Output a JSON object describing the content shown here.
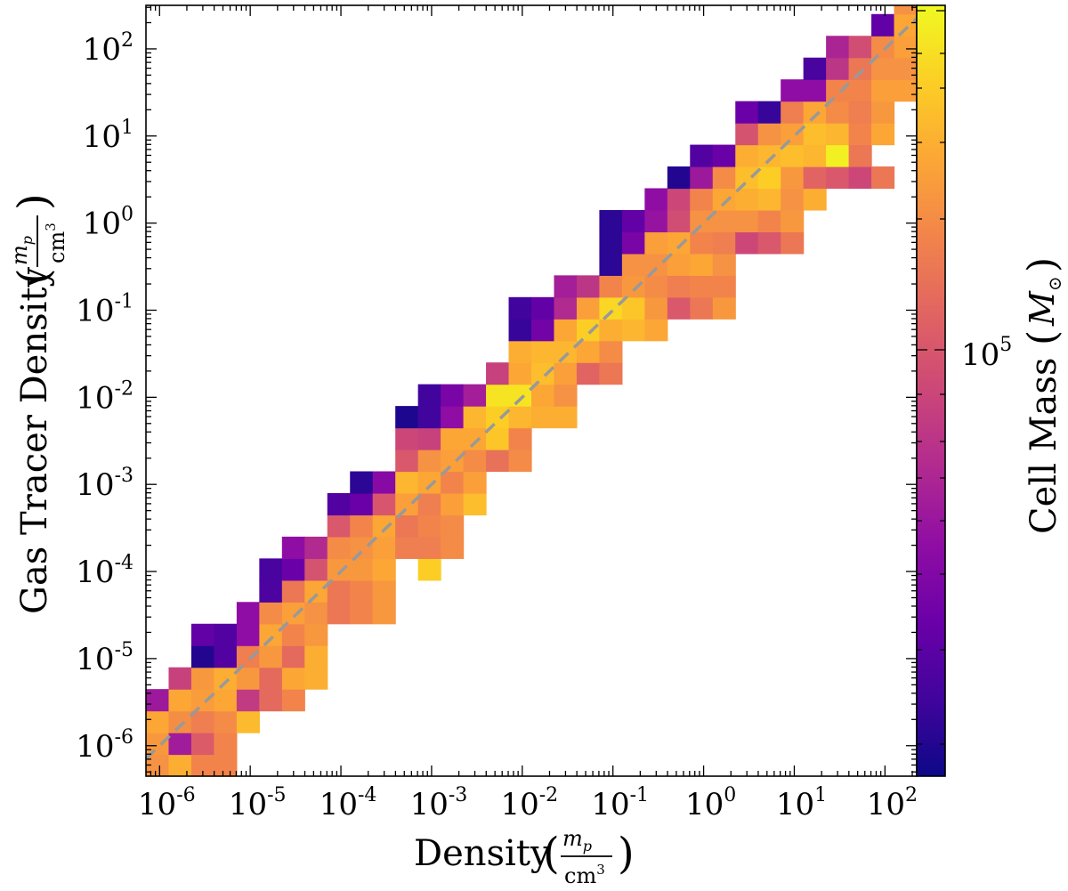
{
  "chart_data": {
    "type": "heatmap",
    "title": "",
    "xlabel": "Density",
    "ylabel": "Gas Tracer Density",
    "unit": {
      "numerator_base": "m",
      "numerator_sub": "p",
      "denominator_base": "cm",
      "denominator_exp": "3"
    },
    "colorbar_label": "Cell Mass",
    "colorbar_unit": "M",
    "colorbar_unit_sub": "⊙",
    "colorbar_tick_label": {
      "base": "10",
      "exp": "5"
    },
    "colormap": "plasma",
    "x_scale": "log",
    "y_scale": "log",
    "xlim_log10": [
      -6.15,
      2.35
    ],
    "ylim_log10": [
      -6.35,
      2.5
    ],
    "x_tick_labels": [
      {
        "base": "10",
        "exp": "-6"
      },
      {
        "base": "10",
        "exp": "-5"
      },
      {
        "base": "10",
        "exp": "-4"
      },
      {
        "base": "10",
        "exp": "-3"
      },
      {
        "base": "10",
        "exp": "-2"
      },
      {
        "base": "10",
        "exp": "-1"
      },
      {
        "base": "10",
        "exp": "0"
      },
      {
        "base": "10",
        "exp": "1"
      },
      {
        "base": "10",
        "exp": "2"
      }
    ],
    "y_tick_labels": [
      {
        "base": "10",
        "exp": "-6"
      },
      {
        "base": "10",
        "exp": "-5"
      },
      {
        "base": "10",
        "exp": "-4"
      },
      {
        "base": "10",
        "exp": "-3"
      },
      {
        "base": "10",
        "exp": "-2"
      },
      {
        "base": "10",
        "exp": "-1"
      },
      {
        "base": "10",
        "exp": "0"
      },
      {
        "base": "10",
        "exp": "1"
      },
      {
        "base": "10",
        "exp": "2"
      }
    ],
    "reference_line": {
      "style": "dashed",
      "color": "#999999",
      "relation": "y = x"
    },
    "bin_width_log10": 0.25,
    "cells": [
      [
        -6.15,
        -6.35,
        0.74
      ],
      [
        -6.15,
        -6.1,
        0.76
      ],
      [
        -6.15,
        -5.85,
        0.8
      ],
      [
        -6.15,
        -5.6,
        0.34
      ],
      [
        -5.9,
        -6.35,
        0.82
      ],
      [
        -5.9,
        -6.1,
        0.35
      ],
      [
        -5.9,
        -5.85,
        0.73
      ],
      [
        -5.9,
        -5.6,
        0.8
      ],
      [
        -5.9,
        -5.35,
        0.48
      ],
      [
        -5.65,
        -6.35,
        0.7
      ],
      [
        -5.65,
        -6.1,
        0.57
      ],
      [
        -5.65,
        -5.85,
        0.68
      ],
      [
        -5.65,
        -5.6,
        0.77
      ],
      [
        -5.65,
        -5.35,
        0.76
      ],
      [
        -5.65,
        -5.1,
        0.04
      ],
      [
        -5.65,
        -4.85,
        0.18
      ],
      [
        -5.4,
        -6.35,
        0.7
      ],
      [
        -5.4,
        -6.1,
        0.7
      ],
      [
        -5.4,
        -5.85,
        0.72
      ],
      [
        -5.4,
        -5.6,
        0.8
      ],
      [
        -5.4,
        -5.35,
        0.82
      ],
      [
        -5.4,
        -5.1,
        0.14
      ],
      [
        -5.4,
        -4.85,
        0.14
      ],
      [
        -5.15,
        -5.85,
        0.85
      ],
      [
        -5.15,
        -5.6,
        0.46
      ],
      [
        -5.15,
        -5.35,
        0.76
      ],
      [
        -5.15,
        -5.1,
        0.68
      ],
      [
        -5.15,
        -4.85,
        0.3
      ],
      [
        -5.15,
        -4.6,
        0.3
      ],
      [
        -4.9,
        -5.6,
        0.62
      ],
      [
        -4.9,
        -5.35,
        0.62
      ],
      [
        -4.9,
        -5.1,
        0.76
      ],
      [
        -4.9,
        -4.85,
        0.8
      ],
      [
        -4.9,
        -4.6,
        0.72
      ],
      [
        -4.9,
        -4.35,
        0.13
      ],
      [
        -4.9,
        -4.1,
        0.12
      ],
      [
        -4.65,
        -5.6,
        0.7
      ],
      [
        -4.65,
        -5.35,
        0.8
      ],
      [
        -4.65,
        -5.1,
        0.62
      ],
      [
        -4.65,
        -4.85,
        0.7
      ],
      [
        -4.65,
        -4.6,
        0.78
      ],
      [
        -4.65,
        -4.35,
        0.66
      ],
      [
        -4.65,
        -4.1,
        0.2
      ],
      [
        -4.65,
        -3.85,
        0.3
      ],
      [
        -4.4,
        -5.35,
        0.82
      ],
      [
        -4.4,
        -5.1,
        0.82
      ],
      [
        -4.4,
        -4.85,
        0.76
      ],
      [
        -4.4,
        -4.6,
        0.74
      ],
      [
        -4.4,
        -4.35,
        0.8
      ],
      [
        -4.4,
        -4.1,
        0.54
      ],
      [
        -4.4,
        -3.85,
        0.4
      ],
      [
        -4.15,
        -4.6,
        0.66
      ],
      [
        -4.15,
        -4.35,
        0.66
      ],
      [
        -4.15,
        -4.1,
        0.76
      ],
      [
        -4.15,
        -3.85,
        0.72
      ],
      [
        -4.15,
        -3.6,
        0.56
      ],
      [
        -4.15,
        -3.35,
        0.14
      ],
      [
        -3.9,
        -4.6,
        0.7
      ],
      [
        -3.9,
        -4.35,
        0.7
      ],
      [
        -3.9,
        -4.1,
        0.76
      ],
      [
        -3.9,
        -3.85,
        0.74
      ],
      [
        -3.9,
        -3.6,
        0.7
      ],
      [
        -3.9,
        -3.35,
        0.2
      ],
      [
        -3.9,
        -3.1,
        0.06
      ],
      [
        -3.65,
        -4.6,
        0.76
      ],
      [
        -3.65,
        -4.35,
        0.76
      ],
      [
        -3.65,
        -4.1,
        0.8
      ],
      [
        -3.65,
        -3.85,
        0.78
      ],
      [
        -3.65,
        -3.6,
        0.8
      ],
      [
        -3.65,
        -3.35,
        0.55
      ],
      [
        -3.65,
        -3.1,
        0.28
      ],
      [
        -3.4,
        -3.85,
        0.68
      ],
      [
        -3.4,
        -3.6,
        0.66
      ],
      [
        -3.4,
        -3.35,
        0.78
      ],
      [
        -3.4,
        -3.1,
        0.84
      ],
      [
        -3.4,
        -2.85,
        0.56
      ],
      [
        -3.4,
        -2.6,
        0.5
      ],
      [
        -3.4,
        -2.35,
        0.03
      ],
      [
        -3.15,
        -4.1,
        0.9
      ],
      [
        -3.15,
        -3.85,
        0.68
      ],
      [
        -3.15,
        -3.6,
        0.7
      ],
      [
        -3.15,
        -3.35,
        0.68
      ],
      [
        -3.15,
        -3.1,
        0.8
      ],
      [
        -3.15,
        -2.85,
        0.74
      ],
      [
        -3.15,
        -2.6,
        0.48
      ],
      [
        -3.15,
        -2.35,
        0.1
      ],
      [
        -3.15,
        -2.1,
        0.1
      ],
      [
        -2.9,
        -3.85,
        0.72
      ],
      [
        -2.9,
        -3.6,
        0.72
      ],
      [
        -2.9,
        -3.35,
        0.78
      ],
      [
        -2.9,
        -3.1,
        0.7
      ],
      [
        -2.9,
        -2.85,
        0.78
      ],
      [
        -2.9,
        -2.6,
        0.8
      ],
      [
        -2.9,
        -2.35,
        0.3
      ],
      [
        -2.9,
        -2.1,
        0.24
      ],
      [
        -2.65,
        -3.35,
        0.86
      ],
      [
        -2.65,
        -3.1,
        0.78
      ],
      [
        -2.65,
        -2.85,
        0.72
      ],
      [
        -2.65,
        -2.6,
        0.8
      ],
      [
        -2.65,
        -2.35,
        0.84
      ],
      [
        -2.65,
        -2.1,
        0.36
      ],
      [
        -2.4,
        -2.85,
        0.64
      ],
      [
        -2.4,
        -2.6,
        0.88
      ],
      [
        -2.4,
        -2.35,
        0.9
      ],
      [
        -2.4,
        -2.1,
        0.95
      ],
      [
        -2.4,
        -1.85,
        0.48
      ],
      [
        -2.15,
        -2.85,
        0.72
      ],
      [
        -2.15,
        -2.6,
        0.7
      ],
      [
        -2.15,
        -2.35,
        0.84
      ],
      [
        -2.15,
        -2.1,
        0.95
      ],
      [
        -2.15,
        -1.85,
        0.8
      ],
      [
        -2.15,
        -1.6,
        0.82
      ],
      [
        -2.15,
        -1.35,
        0.08
      ],
      [
        -2.15,
        -1.1,
        0.1
      ],
      [
        -1.9,
        -2.35,
        0.82
      ],
      [
        -1.9,
        -2.1,
        0.8
      ],
      [
        -1.9,
        -1.85,
        0.86
      ],
      [
        -1.9,
        -1.6,
        0.84
      ],
      [
        -1.9,
        -1.35,
        0.22
      ],
      [
        -1.9,
        -1.1,
        0.18
      ],
      [
        -1.65,
        -2.35,
        0.82
      ],
      [
        -1.65,
        -2.1,
        0.74
      ],
      [
        -1.65,
        -1.85,
        0.78
      ],
      [
        -1.65,
        -1.6,
        0.84
      ],
      [
        -1.65,
        -1.35,
        0.8
      ],
      [
        -1.65,
        -1.1,
        0.4
      ],
      [
        -1.65,
        -0.85,
        0.36
      ],
      [
        -1.4,
        -1.85,
        0.6
      ],
      [
        -1.4,
        -1.6,
        0.8
      ],
      [
        -1.4,
        -1.35,
        0.9
      ],
      [
        -1.4,
        -1.1,
        0.78
      ],
      [
        -1.4,
        -0.85,
        0.44
      ],
      [
        -1.15,
        -1.85,
        0.66
      ],
      [
        -1.15,
        -1.6,
        0.72
      ],
      [
        -1.15,
        -1.35,
        0.82
      ],
      [
        -1.15,
        -1.1,
        0.92
      ],
      [
        -1.15,
        -0.85,
        0.7
      ],
      [
        -1.15,
        -0.6,
        0.06
      ],
      [
        -1.15,
        -0.35,
        0.06
      ],
      [
        -1.15,
        -0.1,
        0.06
      ],
      [
        -0.9,
        -1.35,
        0.84
      ],
      [
        -0.9,
        -1.1,
        0.88
      ],
      [
        -0.9,
        -0.85,
        0.76
      ],
      [
        -0.9,
        -0.6,
        0.74
      ],
      [
        -0.9,
        -0.35,
        0.24
      ],
      [
        -0.9,
        -0.1,
        0.18
      ],
      [
        -0.65,
        -1.35,
        0.8
      ],
      [
        -0.65,
        -1.1,
        0.76
      ],
      [
        -0.65,
        -0.85,
        0.72
      ],
      [
        -0.65,
        -0.6,
        0.74
      ],
      [
        -0.65,
        -0.35,
        0.78
      ],
      [
        -0.65,
        -0.1,
        0.32
      ],
      [
        -0.65,
        0.15,
        0.3
      ],
      [
        -0.4,
        -1.1,
        0.56
      ],
      [
        -0.4,
        -0.85,
        0.68
      ],
      [
        -0.4,
        -0.6,
        0.78
      ],
      [
        -0.4,
        -0.35,
        0.8
      ],
      [
        -0.4,
        -0.1,
        0.52
      ],
      [
        -0.4,
        0.15,
        0.5
      ],
      [
        -0.4,
        0.4,
        0.04
      ],
      [
        -0.15,
        -1.1,
        0.66
      ],
      [
        -0.15,
        -0.85,
        0.7
      ],
      [
        -0.15,
        -0.6,
        0.8
      ],
      [
        -0.15,
        -0.35,
        0.7
      ],
      [
        -0.15,
        -0.1,
        0.74
      ],
      [
        -0.15,
        0.15,
        0.7
      ],
      [
        -0.15,
        0.4,
        0.34
      ],
      [
        -0.15,
        0.65,
        0.14
      ],
      [
        0.1,
        -1.1,
        0.76
      ],
      [
        0.1,
        -0.85,
        0.7
      ],
      [
        0.1,
        -0.6,
        0.74
      ],
      [
        0.1,
        -0.35,
        0.68
      ],
      [
        0.1,
        -0.1,
        0.74
      ],
      [
        0.1,
        0.15,
        0.8
      ],
      [
        0.1,
        0.4,
        0.72
      ],
      [
        0.1,
        0.65,
        0.2
      ],
      [
        0.35,
        -0.35,
        0.5
      ],
      [
        0.35,
        -0.1,
        0.74
      ],
      [
        0.35,
        0.15,
        0.82
      ],
      [
        0.35,
        0.4,
        0.86
      ],
      [
        0.35,
        0.65,
        0.82
      ],
      [
        0.35,
        0.9,
        0.54
      ],
      [
        0.35,
        1.15,
        0.2
      ],
      [
        0.6,
        -0.35,
        0.56
      ],
      [
        0.6,
        -0.1,
        0.7
      ],
      [
        0.6,
        0.15,
        0.84
      ],
      [
        0.6,
        0.4,
        0.9
      ],
      [
        0.6,
        0.65,
        0.84
      ],
      [
        0.6,
        0.9,
        0.74
      ],
      [
        0.6,
        1.15,
        0.08
      ],
      [
        0.85,
        -0.35,
        0.66
      ],
      [
        0.85,
        -0.1,
        0.76
      ],
      [
        0.85,
        0.15,
        0.74
      ],
      [
        0.85,
        0.4,
        0.76
      ],
      [
        0.85,
        0.65,
        0.86
      ],
      [
        0.85,
        0.9,
        0.78
      ],
      [
        0.85,
        1.15,
        0.68
      ],
      [
        0.85,
        1.4,
        0.3
      ],
      [
        1.1,
        0.15,
        0.82
      ],
      [
        1.1,
        0.4,
        0.6
      ],
      [
        1.1,
        0.65,
        0.84
      ],
      [
        1.1,
        0.9,
        0.86
      ],
      [
        1.1,
        1.15,
        0.8
      ],
      [
        1.1,
        1.4,
        0.3
      ],
      [
        1.1,
        1.65,
        0.12
      ],
      [
        1.35,
        0.4,
        0.56
      ],
      [
        1.35,
        0.65,
        0.98
      ],
      [
        1.35,
        0.9,
        0.84
      ],
      [
        1.35,
        1.15,
        0.72
      ],
      [
        1.35,
        1.4,
        0.7
      ],
      [
        1.35,
        1.65,
        0.44
      ],
      [
        1.35,
        1.9,
        0.38
      ],
      [
        1.6,
        0.4,
        0.5
      ],
      [
        1.6,
        0.65,
        0.66
      ],
      [
        1.6,
        0.9,
        0.7
      ],
      [
        1.6,
        1.15,
        0.68
      ],
      [
        1.6,
        1.4,
        0.7
      ],
      [
        1.6,
        1.65,
        0.66
      ],
      [
        1.6,
        1.9,
        0.52
      ],
      [
        1.85,
        0.4,
        0.66
      ],
      [
        1.85,
        0.9,
        0.8
      ],
      [
        1.85,
        1.15,
        0.76
      ],
      [
        1.85,
        1.4,
        0.78
      ],
      [
        1.85,
        1.65,
        0.74
      ],
      [
        1.85,
        1.9,
        0.72
      ],
      [
        1.85,
        2.15,
        0.18
      ],
      [
        2.1,
        1.4,
        0.78
      ],
      [
        2.1,
        1.65,
        0.74
      ],
      [
        2.1,
        1.9,
        0.78
      ],
      [
        2.1,
        2.15,
        0.8
      ],
      [
        2.1,
        2.4,
        0.74
      ]
    ]
  }
}
